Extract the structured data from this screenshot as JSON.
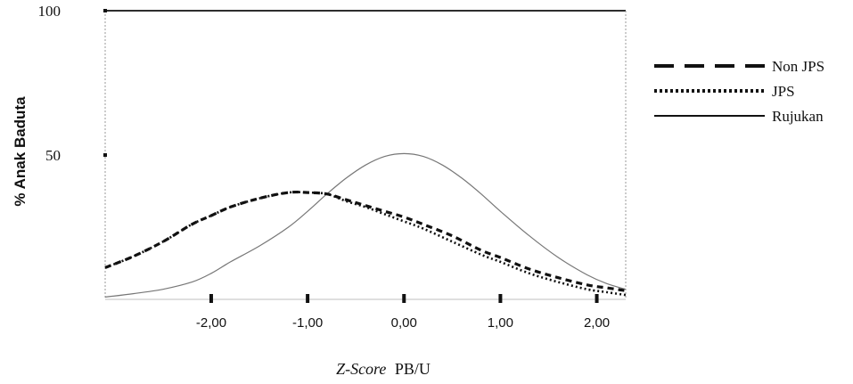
{
  "chart_data": {
    "type": "line",
    "title": "",
    "xlabel_italic": "Z-Score",
    "xlabel_rest": "PB/U",
    "ylabel": "% Anak Baduta",
    "xlim": [
      -3.1,
      2.3
    ],
    "ylim": [
      0,
      100
    ],
    "xticks": [
      {
        "value": -2,
        "label": "-2,00"
      },
      {
        "value": -1,
        "label": "-1,00"
      },
      {
        "value": 0,
        "label": "0,00"
      },
      {
        "value": 1,
        "label": "1,00"
      },
      {
        "value": 2,
        "label": "2,00"
      }
    ],
    "yticks": [
      {
        "value": 50,
        "label": "50"
      },
      {
        "value": 100,
        "label": "100"
      }
    ],
    "legend_position": "right",
    "series": [
      {
        "name": "Non JPS",
        "style": "dashed",
        "color": "#111111",
        "x": [
          -3.1,
          -2.8,
          -2.5,
          -2.2,
          -2.0,
          -1.8,
          -1.5,
          -1.2,
          -1.0,
          -0.8,
          -0.6,
          -0.4,
          -0.2,
          0.0,
          0.2,
          0.5,
          0.8,
          1.0,
          1.3,
          1.6,
          1.9,
          2.1,
          2.3
        ],
        "y": [
          11,
          15,
          20,
          26,
          29,
          32,
          35,
          37,
          37,
          36.5,
          34.5,
          32.5,
          30.5,
          28.5,
          26,
          22,
          17,
          14.5,
          10.5,
          7.5,
          5,
          4,
          3
        ]
      },
      {
        "name": "JPS",
        "style": "dotted",
        "color": "#111111",
        "x": [
          -3.1,
          -2.8,
          -2.5,
          -2.2,
          -2.0,
          -1.8,
          -1.5,
          -1.2,
          -1.0,
          -0.8,
          -0.6,
          -0.4,
          -0.2,
          0.0,
          0.2,
          0.5,
          0.8,
          1.0,
          1.3,
          1.6,
          1.9,
          2.1,
          2.3
        ],
        "y": [
          11,
          15,
          20,
          26,
          29,
          32,
          35,
          37,
          37,
          36.5,
          34,
          32,
          29.5,
          27,
          24.5,
          20,
          15.5,
          13,
          9,
          6,
          3.5,
          2.5,
          1.5
        ]
      },
      {
        "name": "Rujukan",
        "style": "solid",
        "color": "#777777",
        "x": [
          -3.1,
          -2.8,
          -2.5,
          -2.2,
          -2.0,
          -1.8,
          -1.5,
          -1.2,
          -1.0,
          -0.8,
          -0.6,
          -0.4,
          -0.2,
          0.0,
          0.2,
          0.4,
          0.6,
          0.8,
          1.0,
          1.3,
          1.6,
          1.9,
          2.1,
          2.3
        ],
        "y": [
          0.8,
          2,
          3.5,
          6,
          9,
          13,
          18.5,
          25,
          30.5,
          36.5,
          42,
          46.5,
          49.5,
          50.5,
          49.5,
          46.5,
          42,
          36.5,
          30.5,
          22,
          14.5,
          8.5,
          5.5,
          3.5
        ]
      }
    ]
  }
}
